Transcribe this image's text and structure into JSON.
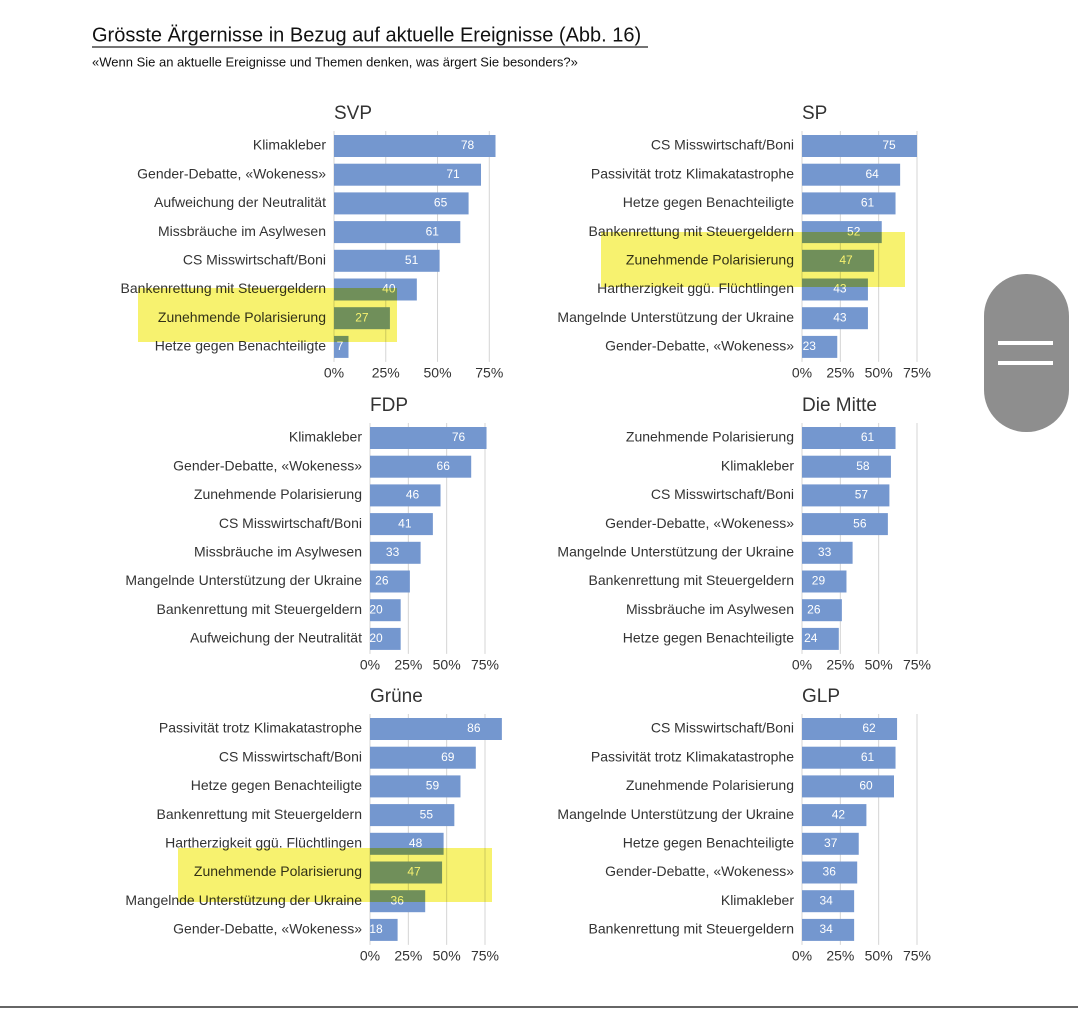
{
  "header": {
    "title": "Grösste Ärgernisse in Bezug auf aktuelle Ereignisse  (Abb. 16)",
    "subtitle": "«Wenn Sie an aktuelle Ereignisse und Themen denken, was ärgert Sie besonders?»"
  },
  "chart_data": [
    {
      "type": "barh",
      "title": "SVP",
      "color": "#7497cf",
      "xlim": [
        0,
        85
      ],
      "xticks": [
        {
          "value": 0,
          "label": "0%"
        },
        {
          "value": 25,
          "label": "25%"
        },
        {
          "value": 50,
          "label": "50%"
        },
        {
          "value": 75,
          "label": "75%"
        }
      ],
      "grid": true,
      "categories": [
        "Klimakleber",
        "Gender-Debatte, «Wokeness»",
        "Aufweichung der Neutralität",
        "Missbräuche im Asylwesen",
        "CS Misswirtschaft/Boni",
        "Bankenrettung mit Steuergeldern",
        "Zunehmende Polarisierung",
        "Hetze gegen Benachteiligte"
      ],
      "values": [
        78,
        71,
        65,
        61,
        51,
        40,
        27,
        7
      ]
    },
    {
      "type": "barh",
      "title": "SP",
      "color": "#7497cf",
      "xlim": [
        0,
        90
      ],
      "xticks": [
        {
          "value": 0,
          "label": "0%"
        },
        {
          "value": 25,
          "label": "25%"
        },
        {
          "value": 50,
          "label": "50%"
        },
        {
          "value": 75,
          "label": "75%"
        }
      ],
      "grid": true,
      "categories": [
        "CS Misswirtschaft/Boni",
        "Passivität trotz Klimakatastrophe",
        "Hetze gegen Benachteiligte",
        "Bankenrettung mit Steuergeldern",
        "Zunehmende Polarisierung",
        "Hartherzigkeit ggü. Flüchtlingen",
        "Mangelnde Unterstützung der Ukraine",
        "Gender-Debatte, «Wokeness»"
      ],
      "values": [
        75,
        64,
        61,
        52,
        47,
        43,
        43,
        23
      ]
    },
    {
      "type": "barh",
      "title": "FDP",
      "color": "#7497cf",
      "xlim": [
        0,
        90
      ],
      "xticks": [
        {
          "value": 0,
          "label": "0%"
        },
        {
          "value": 25,
          "label": "25%"
        },
        {
          "value": 50,
          "label": "50%"
        },
        {
          "value": 75,
          "label": "75%"
        }
      ],
      "grid": true,
      "categories": [
        "Klimakleber",
        "Gender-Debatte, «Wokeness»",
        "Zunehmende Polarisierung",
        "CS Misswirtschaft/Boni",
        "Missbräuche im  Asylwesen",
        "Mangelnde Unterstützung der Ukraine",
        "Bankenrettung mit Steuergeldern",
        "Aufweichung der Neutralität"
      ],
      "values": [
        76,
        66,
        46,
        41,
        33,
        26,
        20,
        20
      ]
    },
    {
      "type": "barh",
      "title": "Die Mitte",
      "color": "#7497cf",
      "xlim": [
        0,
        90
      ],
      "xticks": [
        {
          "value": 0,
          "label": "0%"
        },
        {
          "value": 25,
          "label": "25%"
        },
        {
          "value": 50,
          "label": "50%"
        },
        {
          "value": 75,
          "label": "75%"
        }
      ],
      "grid": true,
      "categories": [
        "Zunehmende Polarisierung",
        "Klimakleber",
        "CS Misswirtschaft/Boni",
        "Gender-Debatte, «Wokeness»",
        "Mangelnde Unterstützung der Ukraine",
        "Bankenrettung mit Steuergeldern",
        "Missbräuche im  Asylwesen",
        "Hetze gegen Benachteiligte"
      ],
      "values": [
        61,
        58,
        57,
        56,
        33,
        29,
        26,
        24
      ]
    },
    {
      "type": "barh",
      "title": "Grüne",
      "color": "#7497cf",
      "xlim": [
        0,
        90
      ],
      "xticks": [
        {
          "value": 0,
          "label": "0%"
        },
        {
          "value": 25,
          "label": "25%"
        },
        {
          "value": 50,
          "label": "50%"
        },
        {
          "value": 75,
          "label": "75%"
        }
      ],
      "grid": true,
      "categories": [
        "Passivität trotz Klimakatastrophe",
        "CS Misswirtschaft/Boni",
        "Hetze gegen Benachteiligte",
        "Bankenrettung mit Steuergeldern",
        "Hartherzigkeit ggü. Flüchtlingen",
        "Zunehmende Polarisierung",
        "Mangelnde Unterstützung der Ukraine",
        "Gender-Debatte, «Wokeness»"
      ],
      "values": [
        86,
        69,
        59,
        55,
        48,
        47,
        36,
        18
      ]
    },
    {
      "type": "barh",
      "title": "GLP",
      "color": "#7497cf",
      "xlim": [
        0,
        90
      ],
      "xticks": [
        {
          "value": 0,
          "label": "0%"
        },
        {
          "value": 25,
          "label": "25%"
        },
        {
          "value": 50,
          "label": "50%"
        },
        {
          "value": 75,
          "label": "75%"
        }
      ],
      "grid": true,
      "categories": [
        "CS Misswirtschaft/Boni",
        "Passivität trotz Klimakatastrophe",
        "Zunehmende Polarisierung",
        "Mangelnde Unterstützung der Ukraine",
        "Hetze gegen Benachteiligte",
        "Gender-Debatte, «Wokeness»",
        "Klimakleber",
        "Bankenrettung mit Steuergeldern"
      ],
      "values": [
        62,
        61,
        60,
        42,
        37,
        36,
        34,
        34
      ]
    }
  ]
}
